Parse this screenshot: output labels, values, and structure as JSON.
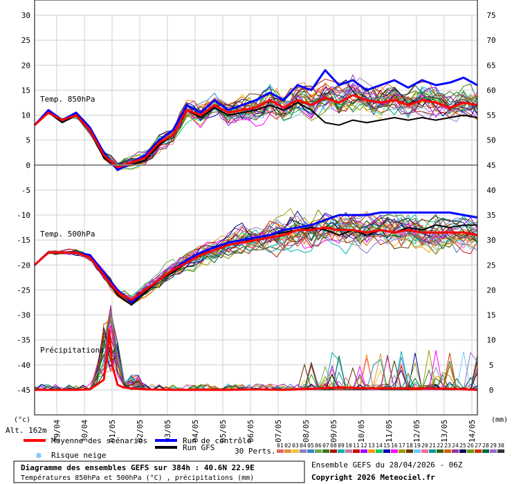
{
  "chart_data": {
    "type": "line",
    "title": "Diagramme des ensembles GEFS sur 384h : 40.6N 22.9E",
    "subtitle": "Températures 850hPa et 500hPa (°C) , précipitations (mm)",
    "altitude": "Alt. 162m",
    "left_unit": "(°c)",
    "right_unit": "(mm)",
    "left_ticks": [
      30,
      25,
      20,
      15,
      10,
      5,
      0,
      -5,
      -10,
      -15,
      -20,
      -25,
      -30,
      -35,
      -40,
      -45
    ],
    "right_ticks": [
      75,
      70,
      65,
      60,
      55,
      50,
      45,
      40,
      35,
      30,
      25,
      20,
      15,
      10,
      5,
      0
    ],
    "ylim": [
      -50,
      30
    ],
    "x_labels": [
      "29/04",
      "30/04",
      "01/05",
      "02/05",
      "03/05",
      "04/05",
      "05/05",
      "06/05",
      "07/05",
      "08/05",
      "09/05",
      "10/05",
      "11/05",
      "12/05",
      "13/05",
      "14/05"
    ],
    "x_range_days": [
      0,
      16
    ],
    "panel_labels": {
      "t850": "Temp. 850hPa",
      "t500": "Temp. 500hPa",
      "precip": "Précipitations"
    },
    "series": [
      {
        "name": "Moyenne des scénarios",
        "panel": "t850",
        "x": [
          0,
          0.5,
          1,
          1.5,
          2,
          2.5,
          3,
          3.5,
          4,
          4.5,
          5,
          5.5,
          6,
          6.5,
          7,
          7.5,
          8,
          8.5,
          9,
          9.5,
          10,
          10.5,
          11,
          11.5,
          12,
          12.5,
          13,
          13.5,
          14,
          14.5,
          15,
          15.5,
          16
        ],
        "values": [
          8,
          10.5,
          9,
          10,
          7,
          2,
          -0.5,
          0.5,
          1.5,
          4.5,
          6,
          11,
          10,
          12,
          10.5,
          11,
          11.5,
          13,
          11.5,
          13,
          12,
          13.5,
          12.5,
          14,
          13,
          12.5,
          13,
          12,
          13,
          12.5,
          11.5,
          12.5,
          12
        ]
      },
      {
        "name": "Moyenne des scénarios",
        "panel": "t500",
        "x": [
          0,
          0.5,
          1,
          1.5,
          2,
          2.5,
          3,
          3.5,
          4,
          4.5,
          5,
          5.5,
          6,
          6.5,
          7,
          7.5,
          8,
          8.5,
          9,
          9.5,
          10,
          10.5,
          11,
          11.5,
          12,
          12.5,
          13,
          13.5,
          14,
          14.5,
          15,
          15.5,
          16
        ],
        "values": [
          -20,
          -17.5,
          -17.5,
          -17.5,
          -18.5,
          -22,
          -25.5,
          -27,
          -25,
          -23,
          -21,
          -19.5,
          -18,
          -17,
          -16,
          -15.5,
          -15,
          -14.5,
          -14,
          -13,
          -13,
          -12.5,
          -13,
          -13,
          -13.5,
          -13,
          -13.5,
          -13,
          -13.5,
          -13.5,
          -13.5,
          -13.5,
          -14
        ]
      },
      {
        "name": "Run de contrôle",
        "panel": "t850",
        "x": [
          0,
          0.5,
          1,
          1.5,
          2,
          2.5,
          3,
          3.5,
          4,
          4.5,
          5,
          5.5,
          6,
          6.5,
          7,
          7.5,
          8,
          8.5,
          9,
          9.5,
          10,
          10.5,
          11,
          11.5,
          12,
          12.5,
          13,
          13.5,
          14,
          14.5,
          15,
          15.5,
          16
        ],
        "values": [
          8,
          11,
          9,
          10.5,
          7.5,
          2.5,
          -1,
          0.5,
          2,
          5,
          7,
          12,
          10.5,
          13,
          11,
          12,
          13,
          14.5,
          13,
          16,
          15,
          19,
          16,
          17,
          15,
          16,
          17,
          15.5,
          17,
          16,
          16.5,
          17.5,
          16
        ]
      },
      {
        "name": "Run de contrôle",
        "panel": "t500",
        "x": [
          0,
          0.5,
          1,
          1.5,
          2,
          2.5,
          3,
          3.5,
          4,
          4.5,
          5,
          5.5,
          6,
          6.5,
          7,
          7.5,
          8,
          8.5,
          9,
          9.5,
          10,
          10.5,
          11,
          11.5,
          12,
          12.5,
          13,
          13.5,
          14,
          14.5,
          15,
          15.5,
          16
        ],
        "values": [
          -20,
          -17.5,
          -17.5,
          -17.5,
          -18,
          -21.5,
          -25,
          -27.5,
          -25,
          -23,
          -21,
          -19,
          -17.5,
          -16.5,
          -15.5,
          -15,
          -14.5,
          -14,
          -13,
          -12.5,
          -12,
          -11,
          -10,
          -10,
          -10,
          -9.5,
          -9.5,
          -9.5,
          -9.5,
          -9.5,
          -9.5,
          -10,
          -10.5
        ]
      },
      {
        "name": "Run GFS",
        "panel": "t850",
        "x": [
          0,
          0.5,
          1,
          1.5,
          2,
          2.5,
          3,
          3.5,
          4,
          4.5,
          5,
          5.5,
          6,
          6.5,
          7,
          7.5,
          8,
          8.5,
          9,
          9.5,
          10,
          10.5,
          11,
          11.5,
          12,
          12.5,
          13,
          13.5,
          14,
          14.5,
          15,
          15.5,
          16
        ],
        "values": [
          8,
          10.5,
          8.5,
          10,
          7,
          1.5,
          -0.5,
          0,
          1,
          4,
          6,
          11,
          9.5,
          11.5,
          10,
          10.5,
          11,
          12,
          11,
          12.5,
          11,
          8.5,
          8,
          9,
          8.5,
          9,
          9.5,
          9,
          9.5,
          9,
          9.5,
          10,
          9.5
        ]
      },
      {
        "name": "Run GFS",
        "panel": "t500",
        "x": [
          0,
          0.5,
          1,
          1.5,
          2,
          2.5,
          3,
          3.5,
          4,
          4.5,
          5,
          5.5,
          6,
          6.5,
          7,
          7.5,
          8,
          8.5,
          9,
          9.5,
          10,
          10.5,
          11,
          11.5,
          12,
          12.5,
          13,
          13.5,
          14,
          14.5,
          15,
          15.5,
          16
        ],
        "values": [
          -20,
          -17.5,
          -17.5,
          -17.5,
          -18.5,
          -22,
          -26,
          -28,
          -25.5,
          -23,
          -21.5,
          -19.5,
          -18,
          -17,
          -16,
          -15.5,
          -14.5,
          -14,
          -13.5,
          -13,
          -12.5,
          -13,
          -14,
          -13,
          -14,
          -13,
          -13.5,
          -12.5,
          -13,
          -12,
          -12.5,
          -12,
          -12
        ]
      },
      {
        "name": "Moyenne des scénarios",
        "panel": "precip",
        "x": [
          0,
          1,
          1.5,
          2,
          2.5,
          2.6,
          2.7,
          2.8,
          3,
          3.2,
          3.5,
          4,
          5,
          6,
          7,
          8,
          9,
          10,
          11,
          12,
          13,
          14,
          15,
          16
        ],
        "values": [
          0,
          0,
          0,
          0.1,
          2,
          6,
          12,
          5,
          1,
          0.5,
          0.3,
          0.1,
          0,
          0,
          0,
          0.1,
          0,
          0.2,
          0.5,
          0.3,
          0.3,
          0.3,
          0.2,
          0
        ]
      }
    ],
    "legend": {
      "mean": "Moyenne des scénarios",
      "control": "Run de contrôle",
      "gfs": "Run GFS",
      "snow": "Risque neige",
      "perts_count": "30 Perts.",
      "pert_numbers": [
        "01",
        "02",
        "03",
        "04",
        "05",
        "06",
        "07",
        "08",
        "09",
        "10",
        "11",
        "12",
        "13",
        "14",
        "15",
        "16",
        "17",
        "18",
        "19",
        "20",
        "21",
        "22",
        "23",
        "24",
        "25",
        "26",
        "27",
        "28",
        "29",
        "30"
      ]
    },
    "info_run": "Ensemble GEFS du 28/04/2026 - 06Z",
    "copyright": "Copyright 2026 Meteociel.fr",
    "colors": {
      "mean": "#ff0000",
      "control": "#0000ff",
      "gfs": "#000000",
      "snow": "#2aa0ff",
      "perts": [
        "#e06666",
        "#e69138",
        "#f1c232",
        "#8e7cc3",
        "#3d85c6",
        "#6aa84f",
        "#38761d",
        "#a61c00",
        "#00b0b0",
        "#c27ba0",
        "#cc0000",
        "#9900ff",
        "#ff9900",
        "#00cc66",
        "#0000aa",
        "#ff00ff",
        "#999900",
        "#663300",
        "#66ccff",
        "#ff6699",
        "#009999",
        "#336600",
        "#cc6600",
        "#993399",
        "#000066",
        "#669900",
        "#cc3300",
        "#006633",
        "#9966cc",
        "#333333"
      ]
    }
  }
}
